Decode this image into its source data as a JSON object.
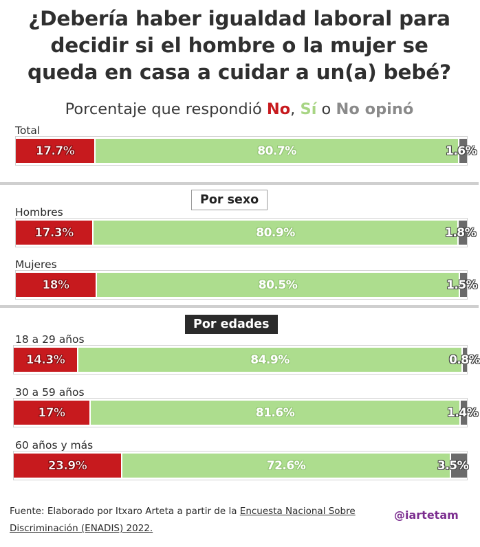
{
  "title_lines": [
    "¿Debería haber igualdad laboral para",
    "decidir si el hombre o la mujer se",
    "queda en casa a cuidar a un(a) bebé?"
  ],
  "subtitle": {
    "prefix": "Porcentaje que respondió ",
    "no": "No",
    "sep1": ", ",
    "si": "Sí",
    "sep2": " o ",
    "no_opino": "No opinó"
  },
  "colors": {
    "no": "#c71a1e",
    "si": "#addd8e",
    "no_opino": "#6b6b6b"
  },
  "sections": {
    "por_sexo": "Por sexo",
    "por_edades": "Por edades"
  },
  "footer": {
    "prefix": "Fuente: Elaborado por Itxaro Arteta a partir de la ",
    "link1": "Encuesta Nacional Sobre",
    "link2": "Discriminación (ENADIS) 2022."
  },
  "handle": "@iartetam",
  "chart_data": {
    "type": "bar",
    "orientation": "horizontal-stacked",
    "categories": [
      "Total",
      "Hombres",
      "Mujeres",
      "18 a 29 años",
      "30 a 59 años",
      "60 años y más"
    ],
    "series": [
      {
        "name": "No",
        "values": [
          17.7,
          17.3,
          18,
          14.3,
          17,
          23.9
        ],
        "labels": [
          "17.7%",
          "17.3%",
          "18%",
          "14.3%",
          "17%",
          "23.9%"
        ]
      },
      {
        "name": "Sí",
        "values": [
          80.7,
          80.9,
          80.5,
          84.9,
          81.6,
          72.6
        ],
        "labels": [
          "80.7%",
          "80.9%",
          "80.5%",
          "84.9%",
          "81.6%",
          "72.6%"
        ]
      },
      {
        "name": "No opinó",
        "values": [
          1.6,
          1.8,
          1.5,
          0.8,
          1.4,
          3.5
        ],
        "labels": [
          "1.6%",
          "1.8%",
          "1.5%",
          "0.8%",
          "1.4%",
          "3.5%"
        ]
      }
    ],
    "xlim": [
      0,
      100
    ]
  }
}
